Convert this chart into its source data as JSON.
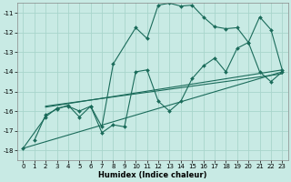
{
  "xlabel": "Humidex (Indice chaleur)",
  "xlim": [
    -0.5,
    23.5
  ],
  "ylim": [
    -18.5,
    -10.5
  ],
  "yticks": [
    -18,
    -17,
    -16,
    -15,
    -14,
    -13,
    -12,
    -11
  ],
  "xticks": [
    0,
    1,
    2,
    3,
    4,
    5,
    6,
    7,
    8,
    9,
    10,
    11,
    12,
    13,
    14,
    15,
    16,
    17,
    18,
    19,
    20,
    21,
    22,
    23
  ],
  "bg_color": "#c8eae4",
  "grid_color": "#a8d5cc",
  "line_color": "#1a6b5a",
  "line1_x": [
    0,
    2,
    3,
    4,
    5,
    6,
    7,
    8,
    10,
    11,
    12,
    13,
    14,
    15,
    16,
    17,
    18,
    19,
    20,
    21,
    22,
    23
  ],
  "line1_y": [
    -17.9,
    -16.3,
    -15.85,
    -15.75,
    -16.0,
    -15.75,
    -16.8,
    -13.6,
    -11.75,
    -12.3,
    -10.6,
    -10.5,
    -10.65,
    -10.6,
    -11.2,
    -11.7,
    -11.8,
    -11.75,
    -12.5,
    -11.2,
    -11.85,
    -13.9
  ],
  "line2_x": [
    1,
    2,
    3,
    4,
    5,
    6,
    7,
    8,
    9,
    10,
    11,
    12,
    13,
    14,
    15,
    16,
    17,
    18,
    19,
    20,
    21,
    22,
    23
  ],
  "line2_y": [
    -17.5,
    -16.2,
    -15.9,
    -15.7,
    -16.3,
    -15.75,
    -17.1,
    -16.7,
    -16.8,
    -14.0,
    -13.9,
    -15.5,
    -16.0,
    -15.5,
    -14.35,
    -13.7,
    -13.3,
    -14.0,
    -12.8,
    -12.5,
    -14.0,
    -14.5,
    -14.0
  ],
  "line3_x": [
    2,
    23
  ],
  "line3_y": [
    -15.8,
    -13.9
  ],
  "line4_x": [
    2,
    23
  ],
  "line4_y": [
    -15.75,
    -14.1
  ],
  "line5_x": [
    0,
    23
  ],
  "line5_y": [
    -17.9,
    -14.0
  ],
  "line_width": 0.8,
  "marker": "D",
  "marker_size": 2.0,
  "tick_fontsize": 5.0,
  "xlabel_fontsize": 6.0
}
